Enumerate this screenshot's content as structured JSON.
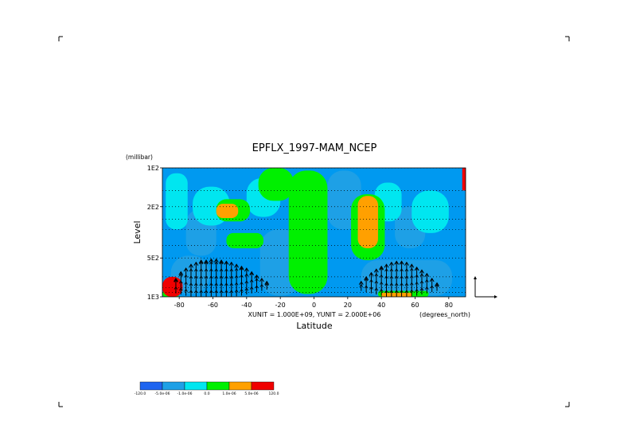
{
  "chart_data": {
    "type": "heatmap",
    "title": "EPFLX_1997-MAM_NCEP",
    "xlabel": "Latitude",
    "ylabel": "Level",
    "y_unit_label": "(millibar)",
    "x_unit_label": "(degrees_north)",
    "vector_units_label": "XUNIT = 1.000E+09, YUNIT = 2.000E+06",
    "x_range": [
      -90,
      90
    ],
    "y_range": [
      1000,
      100
    ],
    "y_scale": "log",
    "x_ticks": [
      -80,
      -60,
      -40,
      -20,
      0,
      20,
      40,
      60,
      80
    ],
    "x_tick_labels": [
      "-80",
      "-60",
      "-40",
      "-20",
      "0",
      "20",
      "40",
      "60",
      "80"
    ],
    "y_ticks": [
      100,
      200,
      500,
      1000
    ],
    "y_tick_labels": [
      "1E2",
      "2E2",
      "5E2",
      "1E3"
    ],
    "dotted_levels": [
      100,
      150,
      200,
      250,
      300,
      400,
      500,
      700,
      850,
      925
    ],
    "colorbar": {
      "colors": [
        "#1e64f0",
        "#1ea0e6",
        "#00e6f0",
        "#00f000",
        "#ffa000",
        "#f00000"
      ],
      "labels": [
        "-120.0",
        "-5.0e-06",
        "-1.0e-06",
        "0.0",
        "1.0e-06",
        "5.0e-06",
        "120.0"
      ]
    },
    "background_color": "#0099f0",
    "field_regions": [
      {
        "category": 1,
        "lat": [
          -85,
          -62
        ],
        "p": [
          950,
          480
        ]
      },
      {
        "category": 1,
        "lat": [
          -32,
          -8
        ],
        "p": [
          980,
          300
        ]
      },
      {
        "category": 1,
        "lat": [
          28,
          82
        ],
        "p": [
          980,
          520
        ]
      },
      {
        "category": 1,
        "lat": [
          -76,
          -58
        ],
        "p": [
          480,
          210
        ]
      },
      {
        "category": 1,
        "lat": [
          48,
          66
        ],
        "p": [
          420,
          200
        ]
      },
      {
        "category": 1,
        "lat": [
          8,
          28
        ],
        "p": [
          300,
          105
        ]
      },
      {
        "category": 2,
        "lat": [
          -72,
          -50
        ],
        "p": [
          280,
          140
        ]
      },
      {
        "category": 2,
        "lat": [
          -40,
          -20
        ],
        "p": [
          240,
          120
        ]
      },
      {
        "category": 2,
        "lat": [
          58,
          80
        ],
        "p": [
          320,
          150
        ]
      },
      {
        "category": 2,
        "lat": [
          -88,
          -75
        ],
        "p": [
          300,
          110
        ]
      },
      {
        "category": 2,
        "lat": [
          36,
          52
        ],
        "p": [
          260,
          130
        ]
      },
      {
        "category": 3,
        "lat": [
          -15,
          8
        ],
        "p": [
          950,
          105
        ]
      },
      {
        "category": 3,
        "lat": [
          -33,
          -12
        ],
        "p": [
          180,
          100
        ]
      },
      {
        "category": 3,
        "lat": [
          -58,
          -38
        ],
        "p": [
          260,
          175
        ]
      },
      {
        "category": 3,
        "lat": [
          22,
          42
        ],
        "p": [
          520,
          160
        ]
      },
      {
        "category": 3,
        "lat": [
          -52,
          -30
        ],
        "p": [
          420,
          320
        ]
      },
      {
        "category": 3,
        "lat": [
          38,
          68
        ],
        "p": [
          1000,
          900
        ]
      },
      {
        "category": 3,
        "lat": [
          -90,
          -80
        ],
        "p": [
          1000,
          900
        ]
      },
      {
        "category": 4,
        "lat": [
          -58,
          -45
        ],
        "p": [
          245,
          190
        ]
      },
      {
        "category": 4,
        "lat": [
          26,
          38
        ],
        "p": [
          420,
          165
        ]
      },
      {
        "category": 4,
        "lat": [
          40,
          58
        ],
        "p": [
          1000,
          930
        ]
      },
      {
        "category": 5,
        "lat": [
          -90,
          -78
        ],
        "p": [
          1000,
          700
        ]
      },
      {
        "category": 5,
        "lat": [
          88,
          90
        ],
        "p": [
          100,
          150
        ]
      }
    ],
    "vector_columns": [
      {
        "lat": -82,
        "bottom_p": 940,
        "top_p": 720
      },
      {
        "lat": -79,
        "bottom_p": 960,
        "top_p": 640
      },
      {
        "lat": -76,
        "bottom_p": 980,
        "top_p": 600
      },
      {
        "lat": -73,
        "bottom_p": 1000,
        "top_p": 560
      },
      {
        "lat": -70,
        "bottom_p": 1000,
        "top_p": 540
      },
      {
        "lat": -67,
        "bottom_p": 1000,
        "top_p": 520
      },
      {
        "lat": -64,
        "bottom_p": 1000,
        "top_p": 520
      },
      {
        "lat": -61,
        "bottom_p": 1000,
        "top_p": 510
      },
      {
        "lat": -58,
        "bottom_p": 1000,
        "top_p": 510
      },
      {
        "lat": -55,
        "bottom_p": 1000,
        "top_p": 520
      },
      {
        "lat": -52,
        "bottom_p": 1000,
        "top_p": 530
      },
      {
        "lat": -49,
        "bottom_p": 1000,
        "top_p": 540
      },
      {
        "lat": -46,
        "bottom_p": 990,
        "top_p": 560
      },
      {
        "lat": -43,
        "bottom_p": 980,
        "top_p": 580
      },
      {
        "lat": -40,
        "bottom_p": 960,
        "top_p": 600
      },
      {
        "lat": -37,
        "bottom_p": 940,
        "top_p": 640
      },
      {
        "lat": -34,
        "bottom_p": 920,
        "top_p": 680
      },
      {
        "lat": -31,
        "bottom_p": 900,
        "top_p": 720
      },
      {
        "lat": -28,
        "bottom_p": 880,
        "top_p": 760
      },
      {
        "lat": 28,
        "bottom_p": 900,
        "top_p": 760
      },
      {
        "lat": 31,
        "bottom_p": 920,
        "top_p": 700
      },
      {
        "lat": 34,
        "bottom_p": 940,
        "top_p": 650
      },
      {
        "lat": 37,
        "bottom_p": 960,
        "top_p": 610
      },
      {
        "lat": 40,
        "bottom_p": 980,
        "top_p": 580
      },
      {
        "lat": 43,
        "bottom_p": 1000,
        "top_p": 560
      },
      {
        "lat": 46,
        "bottom_p": 1000,
        "top_p": 540
      },
      {
        "lat": 49,
        "bottom_p": 1000,
        "top_p": 530
      },
      {
        "lat": 52,
        "bottom_p": 1000,
        "top_p": 530
      },
      {
        "lat": 55,
        "bottom_p": 1000,
        "top_p": 540
      },
      {
        "lat": 58,
        "bottom_p": 990,
        "top_p": 560
      },
      {
        "lat": 61,
        "bottom_p": 980,
        "top_p": 590
      },
      {
        "lat": 64,
        "bottom_p": 960,
        "top_p": 620
      },
      {
        "lat": 67,
        "bottom_p": 940,
        "top_p": 660
      },
      {
        "lat": 70,
        "bottom_p": 920,
        "top_p": 720
      },
      {
        "lat": 73,
        "bottom_p": 900,
        "top_p": 780
      }
    ],
    "grid": false,
    "legend": "colorbar bottom-left"
  }
}
